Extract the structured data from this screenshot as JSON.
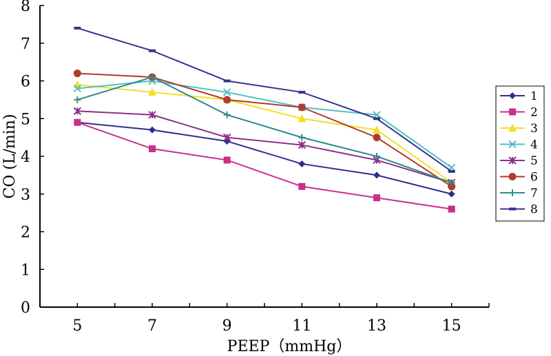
{
  "chart_data": {
    "type": "line",
    "xlabel": "PEEP（mmHg）",
    "ylabel": "CO (L/min)",
    "x": [
      5,
      7,
      9,
      11,
      13,
      15
    ],
    "xlim": [
      4,
      16
    ],
    "ylim": [
      0,
      8
    ],
    "y_ticks": [
      0,
      1,
      2,
      3,
      4,
      5,
      6,
      7,
      8
    ],
    "grid": false,
    "legend_position": "right",
    "series": [
      {
        "name": "1",
        "color": "#2E2E8E",
        "marker": "diamond",
        "values": [
          4.9,
          4.7,
          4.4,
          3.8,
          3.5,
          3.0
        ]
      },
      {
        "name": "2",
        "color": "#C8308A",
        "marker": "square",
        "values": [
          4.9,
          4.2,
          3.9,
          3.2,
          2.9,
          2.6
        ]
      },
      {
        "name": "3",
        "color": "#F0E020",
        "marker": "triangle",
        "values": [
          5.9,
          5.7,
          5.5,
          5.0,
          4.7,
          3.3
        ]
      },
      {
        "name": "4",
        "color": "#4FC0C0",
        "marker": "x",
        "values": [
          5.8,
          6.0,
          5.7,
          5.3,
          5.1,
          3.7
        ]
      },
      {
        "name": "5",
        "color": "#8B2E8B",
        "marker": "star",
        "values": [
          5.2,
          5.1,
          4.5,
          4.3,
          3.9,
          3.3
        ]
      },
      {
        "name": "6",
        "color": "#B03A2E",
        "marker": "circle",
        "values": [
          6.2,
          6.1,
          5.5,
          5.3,
          4.5,
          3.2
        ]
      },
      {
        "name": "7",
        "color": "#2E8B8B",
        "marker": "plus",
        "values": [
          5.5,
          6.1,
          5.1,
          4.5,
          4.0,
          3.3
        ]
      },
      {
        "name": "8",
        "color": "#34348E",
        "marker": "dash",
        "values": [
          7.4,
          6.8,
          6.0,
          5.7,
          5.0,
          3.6
        ]
      }
    ]
  }
}
